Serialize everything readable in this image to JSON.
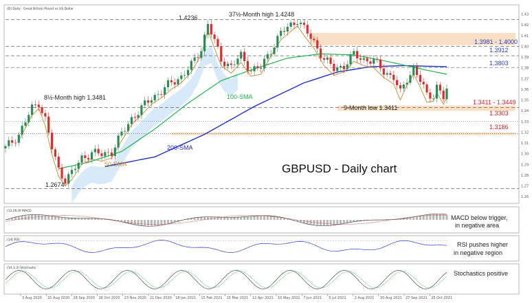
{
  "chart_data": {
    "type": "candlestick",
    "header": "(D) Daily · Great Britain Pound vs US Dollar",
    "title": "GBPUSD - Daily chart",
    "x_labels": [
      "3 Aug 2020",
      "31 Aug 2020",
      "28 Sep 2020",
      "26 Oct 2020",
      "23 Nov 2020",
      "21 Dec 2020",
      "18 Jan 2021",
      "15 Feb 2021",
      "15 Mar 2021",
      "12 Apr 2021",
      "10 May 2021",
      "7 Jun 2021",
      "5 Jul 2021",
      "2 Aug 2021",
      "30 Aug 2021",
      "27 Sep 2021",
      "25 Oct 2021"
    ],
    "y_ticks": [
      1.43,
      1.42,
      1.41,
      1.4,
      1.39,
      1.38,
      1.37,
      1.36,
      1.35,
      1.34,
      1.33,
      1.32,
      1.31,
      1.3,
      1.29,
      1.28,
      1.27,
      1.26
    ],
    "ylim": [
      1.255,
      1.438
    ],
    "price_path": [
      [
        0,
        1.305
      ],
      [
        4,
        1.318
      ],
      [
        8,
        1.342
      ],
      [
        10,
        1.348
      ],
      [
        12,
        1.332
      ],
      [
        14,
        1.305
      ],
      [
        16,
        1.285
      ],
      [
        18,
        1.276
      ],
      [
        20,
        1.282
      ],
      [
        23,
        1.296
      ],
      [
        26,
        1.301
      ],
      [
        29,
        1.299
      ],
      [
        32,
        1.302
      ],
      [
        35,
        1.318
      ],
      [
        38,
        1.333
      ],
      [
        41,
        1.342
      ],
      [
        44,
        1.352
      ],
      [
        47,
        1.358
      ],
      [
        50,
        1.366
      ],
      [
        53,
        1.372
      ],
      [
        56,
        1.382
      ],
      [
        59,
        1.398
      ],
      [
        61,
        1.421
      ],
      [
        63,
        1.404
      ],
      [
        65,
        1.388
      ],
      [
        68,
        1.381
      ],
      [
        71,
        1.391
      ],
      [
        74,
        1.378
      ],
      [
        77,
        1.38
      ],
      [
        80,
        1.397
      ],
      [
        83,
        1.412
      ],
      [
        86,
        1.42
      ],
      [
        88,
        1.425
      ],
      [
        90,
        1.416
      ],
      [
        93,
        1.404
      ],
      [
        96,
        1.388
      ],
      [
        99,
        1.379
      ],
      [
        102,
        1.382
      ],
      [
        105,
        1.392
      ],
      [
        108,
        1.388
      ],
      [
        111,
        1.386
      ],
      [
        114,
        1.377
      ],
      [
        117,
        1.371
      ],
      [
        119,
        1.356
      ],
      [
        121,
        1.37
      ],
      [
        123,
        1.38
      ],
      [
        125,
        1.368
      ],
      [
        127,
        1.354
      ],
      [
        129,
        1.355
      ],
      [
        130,
        1.363
      ],
      [
        132,
        1.352
      ],
      [
        133,
        1.359
      ]
    ],
    "sma_100": [
      [
        16,
        1.286
      ],
      [
        25,
        1.292
      ],
      [
        35,
        1.302
      ],
      [
        45,
        1.323
      ],
      [
        55,
        1.347
      ],
      [
        65,
        1.368
      ],
      [
        75,
        1.379
      ],
      [
        85,
        1.389
      ],
      [
        95,
        1.393
      ],
      [
        105,
        1.392
      ],
      [
        115,
        1.386
      ],
      [
        125,
        1.379
      ],
      [
        133,
        1.374
      ]
    ],
    "sma_200": [
      [
        30,
        1.288
      ],
      [
        45,
        1.297
      ],
      [
        60,
        1.318
      ],
      [
        75,
        1.344
      ],
      [
        90,
        1.366
      ],
      [
        100,
        1.376
      ],
      [
        110,
        1.381
      ],
      [
        120,
        1.382
      ],
      [
        133,
        1.381
      ]
    ],
    "levels": [
      {
        "label": "37½-Month high 1.4248",
        "value": 1.4248,
        "style": "dashed"
      },
      {
        "label": "1.4236",
        "value": 1.4236,
        "style": "none"
      },
      {
        "label": "1.3981 - 1.4000",
        "value": 1.4,
        "style": "dashed",
        "color": "#2a3fc4"
      },
      {
        "label": "1.3912",
        "value": 1.3912,
        "style": "dashed",
        "color": "#2a3fc4"
      },
      {
        "label": "1.3803",
        "value": 1.3803,
        "style": "dashed",
        "color": "#2a3fc4"
      },
      {
        "label": "1.3411 - 1.3449",
        "value": 1.343,
        "style": "dashed",
        "color": "#d2232a"
      },
      {
        "label": "1.3303",
        "value": 1.3303,
        "style": "dotted",
        "color": "#d2232a"
      },
      {
        "label": "1.3186",
        "value": 1.3186,
        "style": "dotted",
        "color": "#d2232a"
      },
      {
        "label": "1.2674",
        "value": 1.2674,
        "style": "dashed"
      }
    ],
    "annotations": {
      "high_1": "1.4236",
      "high_2": "37½-Month high 1.4248",
      "month8_high": "8½-Month high 1.3481",
      "month9_low": "9-Month low 1.3411",
      "sma100": "100-SMA",
      "sma200": "200-SMA",
      "sma50": "50-SMA",
      "low": "1.2674"
    },
    "indicators": {
      "macd": {
        "header": "(12,26,9) MACD",
        "note_1": "MACD below trigger,",
        "note_2": "in negative area"
      },
      "rsi": {
        "header": "(14) RSI",
        "note_1": "RSI pushes higher",
        "note_2": "in negative region"
      },
      "stoch": {
        "header": "(14,3,3) Stochastic",
        "note": "Stochastics positive"
      }
    },
    "colors": {
      "sma100": "#22b14c",
      "sma200": "#1f2fbf",
      "sma50": "#c8872f",
      "bull": "#2e8b57",
      "bear": "#d63030",
      "cloud_up": "#8fc1e8",
      "cloud_dn": "#f4b98f",
      "band": "#f7d7b4"
    }
  }
}
